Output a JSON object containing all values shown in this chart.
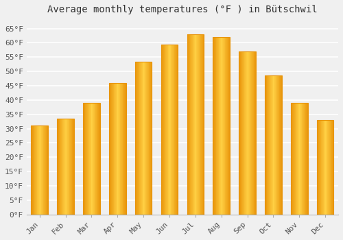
{
  "title": "Average monthly temperatures (°F ) in Bütschwil",
  "months": [
    "Jan",
    "Feb",
    "Mar",
    "Apr",
    "May",
    "Jun",
    "Jul",
    "Aug",
    "Sep",
    "Oct",
    "Nov",
    "Dec"
  ],
  "values": [
    31,
    33.5,
    39,
    46,
    53.5,
    59.5,
    63,
    62,
    57,
    48.5,
    39,
    33
  ],
  "bar_color_center": "#FFD044",
  "bar_color_edge": "#E8940A",
  "ylim": [
    0,
    68
  ],
  "yticks": [
    0,
    5,
    10,
    15,
    20,
    25,
    30,
    35,
    40,
    45,
    50,
    55,
    60,
    65
  ],
  "ytick_labels": [
    "0°F",
    "5°F",
    "10°F",
    "15°F",
    "20°F",
    "25°F",
    "30°F",
    "35°F",
    "40°F",
    "45°F",
    "50°F",
    "55°F",
    "60°F",
    "65°F"
  ],
  "background_color": "#f0f0f0",
  "plot_bg_color": "#f0f0f0",
  "grid_color": "#ffffff",
  "title_fontsize": 10,
  "tick_fontsize": 8,
  "font_family": "monospace"
}
